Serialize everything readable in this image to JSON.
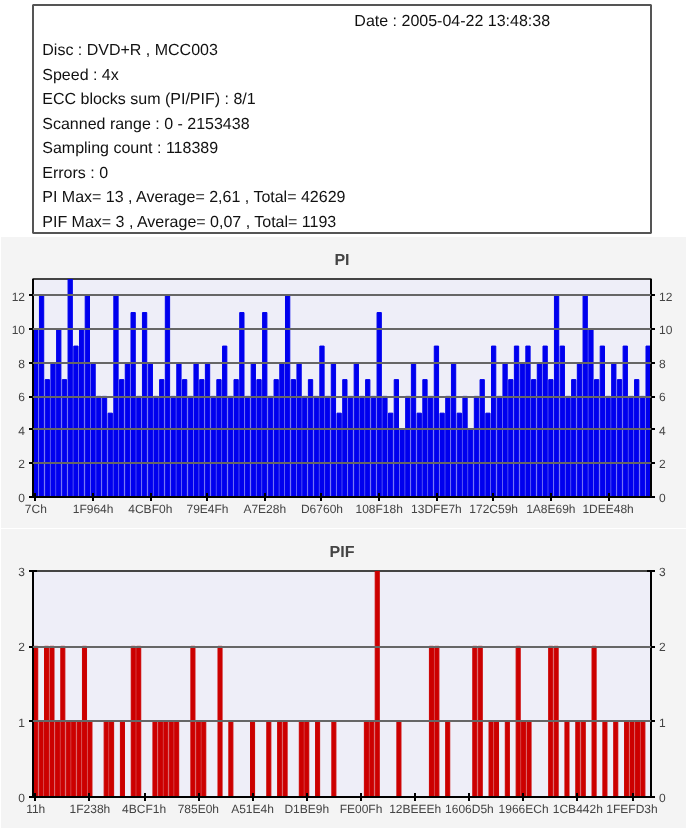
{
  "chart_data": [
    {
      "type": "other",
      "annotations": [
        "Date : 2005-04-22 13:48:38",
        "Disc : DVD+R , MCC003",
        "Speed : 4x",
        "ECC blocks sum (PI/PIF) : 8/1",
        "Scanned range : 0 - 2153438",
        "Sampling count : 118389",
        "Errors : 0",
        "PI Max= 13 , Average= 2,61 , Total= 42629",
        "PIF Max= 3 , Average= 0,07 , Total= 1193"
      ]
    },
    {
      "type": "bar",
      "title": "PI",
      "color": "#0000ee",
      "grid": "y",
      "categories": [
        "7Ch",
        null,
        null,
        null,
        null,
        null,
        null,
        null,
        null,
        null,
        "1F964h",
        null,
        null,
        null,
        null,
        null,
        null,
        null,
        null,
        null,
        "4CBF0h",
        null,
        null,
        null,
        null,
        null,
        null,
        null,
        null,
        null,
        "79E4Fh",
        null,
        null,
        null,
        null,
        null,
        null,
        null,
        null,
        null,
        "A7E28h",
        null,
        null,
        null,
        null,
        null,
        null,
        null,
        null,
        null,
        "D6760h",
        null,
        null,
        null,
        null,
        null,
        null,
        null,
        null,
        null,
        "108F18h",
        null,
        null,
        null,
        null,
        null,
        null,
        null,
        null,
        null,
        "13DFE7h",
        null,
        null,
        null,
        null,
        null,
        null,
        null,
        null,
        null,
        "172C59h",
        null,
        null,
        null,
        null,
        null,
        null,
        null,
        null,
        null,
        "1A8E69h",
        null,
        null,
        null,
        null,
        null,
        null,
        null,
        null,
        null,
        "1DEE48h",
        null,
        null,
        null,
        null,
        null,
        null,
        null
      ],
      "values": [
        10,
        12,
        7,
        8,
        10,
        7,
        13,
        9,
        10,
        12,
        8,
        6,
        6,
        5,
        12,
        7,
        8,
        11,
        6,
        11,
        8,
        6,
        7,
        12,
        6,
        8,
        7,
        6,
        8,
        7,
        8,
        6,
        7,
        9,
        6,
        7,
        11,
        6,
        8,
        7,
        11,
        6,
        7,
        8,
        12,
        7,
        8,
        6,
        7,
        6,
        9,
        6,
        8,
        5,
        7,
        6,
        8,
        6,
        7,
        6,
        11,
        6,
        5,
        7,
        4,
        6,
        8,
        5,
        7,
        6,
        9,
        5,
        6,
        8,
        5,
        6,
        4,
        6,
        7,
        5,
        9,
        6,
        8,
        7,
        9,
        8,
        9,
        7,
        8,
        9,
        7,
        12,
        9,
        6,
        7,
        8,
        12,
        10,
        7,
        9,
        6,
        8,
        7,
        9,
        6,
        7,
        6,
        9
      ],
      "ylim": [
        0,
        13
      ],
      "yticks": [
        0,
        2,
        4,
        6,
        8,
        10,
        12
      ],
      "y2lim": [
        0,
        13
      ],
      "y2ticks": [
        0,
        2,
        4,
        6,
        8,
        10,
        12
      ]
    },
    {
      "type": "bar",
      "title": "PIF",
      "color": "#cc0000",
      "grid": "y",
      "categories": [
        "11h",
        null,
        null,
        null,
        null,
        null,
        null,
        null,
        null,
        null,
        "1F238h",
        null,
        null,
        null,
        null,
        null,
        null,
        null,
        null,
        null,
        "4BCF1h",
        null,
        null,
        null,
        null,
        null,
        null,
        null,
        null,
        null,
        "785E0h",
        null,
        null,
        null,
        null,
        null,
        null,
        null,
        null,
        null,
        "A51E4h",
        null,
        null,
        null,
        null,
        null,
        null,
        null,
        null,
        null,
        "D1BE9h",
        null,
        null,
        null,
        null,
        null,
        null,
        null,
        null,
        null,
        "FE00Fh",
        null,
        null,
        null,
        null,
        null,
        null,
        null,
        null,
        null,
        "12BEEEh",
        null,
        null,
        null,
        null,
        null,
        null,
        null,
        null,
        null,
        "1606D5h",
        null,
        null,
        null,
        null,
        null,
        null,
        null,
        null,
        null,
        "1966ECh",
        null,
        null,
        null,
        null,
        null,
        null,
        null,
        null,
        null,
        "1CB442h",
        null,
        null,
        null,
        null,
        null,
        null,
        null,
        null,
        null,
        "1FEFD3h",
        null,
        null,
        null
      ],
      "values": [
        2,
        1,
        2,
        2,
        1,
        2,
        1,
        1,
        1,
        2,
        1,
        null,
        null,
        1,
        1,
        null,
        1,
        null,
        2,
        2,
        null,
        null,
        1,
        1,
        1,
        1,
        1,
        null,
        null,
        2,
        1,
        1,
        null,
        null,
        2,
        null,
        1,
        null,
        null,
        null,
        1,
        null,
        null,
        1,
        null,
        1,
        1,
        null,
        null,
        1,
        1,
        null,
        1,
        null,
        null,
        1,
        null,
        null,
        null,
        null,
        null,
        1,
        1,
        3,
        null,
        null,
        null,
        1,
        null,
        null,
        null,
        null,
        null,
        2,
        2,
        null,
        1,
        null,
        null,
        null,
        null,
        2,
        2,
        null,
        1,
        1,
        null,
        1,
        null,
        2,
        1,
        1,
        null,
        null,
        null,
        2,
        2,
        null,
        1,
        null,
        1,
        1,
        null,
        2,
        null,
        1,
        null,
        1,
        null,
        1,
        1,
        1,
        1,
        null
      ],
      "ylim": [
        0,
        3
      ],
      "yticks": [
        0,
        1,
        2,
        3
      ],
      "y2lim": [
        0,
        3
      ],
      "y2ticks": [
        0,
        1,
        2,
        3
      ]
    }
  ]
}
